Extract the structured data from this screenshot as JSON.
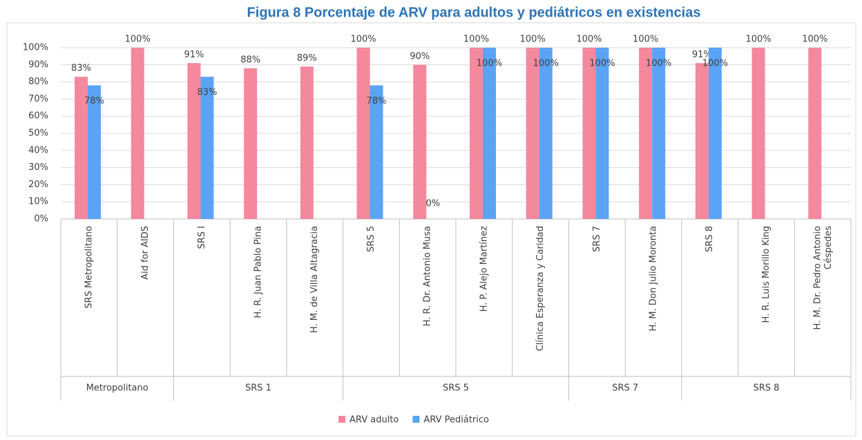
{
  "chart_data": {
    "type": "bar",
    "title": "Figura 8 Porcentaje de ARV para adultos y pediátricos en existencias",
    "groups": [
      {
        "name": "Metropolitano",
        "categories": [
          "SRS Metropolitano",
          "Aid for AIDS"
        ]
      },
      {
        "name": "SRS 1",
        "categories": [
          "SRS I",
          "H. R. Juan Pablo Pina",
          "H. M. de Villa Altagracia"
        ]
      },
      {
        "name": "SRS 5",
        "categories": [
          "SRS 5",
          "H. R. Dr. Antonio Musa",
          "H. P. Alejo Martínez",
          "Clínica Esperanza y Caridad"
        ]
      },
      {
        "name": "SRS 7",
        "categories": [
          "SRS 7",
          "H. M. Don Julio Moronta"
        ]
      },
      {
        "name": "SRS 8",
        "categories": [
          "SRS 8",
          "H. R. Luis Morillo King",
          "H. M. Dr. Pedro Antonio Céspedes"
        ]
      }
    ],
    "series": [
      {
        "name": "ARV adulto",
        "color": "#f4889d",
        "values": [
          83,
          100,
          91,
          88,
          89,
          100,
          90,
          100,
          100,
          100,
          100,
          91,
          100,
          100
        ],
        "value_labels": [
          "83%",
          "100%",
          "91%",
          "88%",
          "89%",
          "100%",
          "90%",
          "100%",
          "100%",
          "100%",
          "100%",
          "91%",
          "100%",
          "100%"
        ]
      },
      {
        "name": "ARV Pediátrico",
        "color": "#5ba3f5",
        "values": [
          78,
          null,
          83,
          null,
          null,
          78,
          0,
          100,
          100,
          100,
          100,
          100,
          null,
          null
        ],
        "value_labels": [
          "78%",
          null,
          "83%",
          null,
          null,
          "78%",
          "0%",
          "100%",
          "100%",
          "100%",
          "100%",
          "100%",
          null,
          null
        ]
      }
    ],
    "ylim": [
      0,
      100
    ],
    "yticks": [
      {
        "value": 0,
        "label": "0%"
      },
      {
        "value": 10,
        "label": "10%"
      },
      {
        "value": 20,
        "label": "20%"
      },
      {
        "value": 30,
        "label": "30%"
      },
      {
        "value": 40,
        "label": "40%"
      },
      {
        "value": 50,
        "label": "50%"
      },
      {
        "value": 60,
        "label": "60%"
      },
      {
        "value": 70,
        "label": "70%"
      },
      {
        "value": 80,
        "label": "80%"
      },
      {
        "value": 90,
        "label": "90%"
      },
      {
        "value": 100,
        "label": "100%"
      }
    ],
    "grid": true,
    "legend": "bottom"
  }
}
